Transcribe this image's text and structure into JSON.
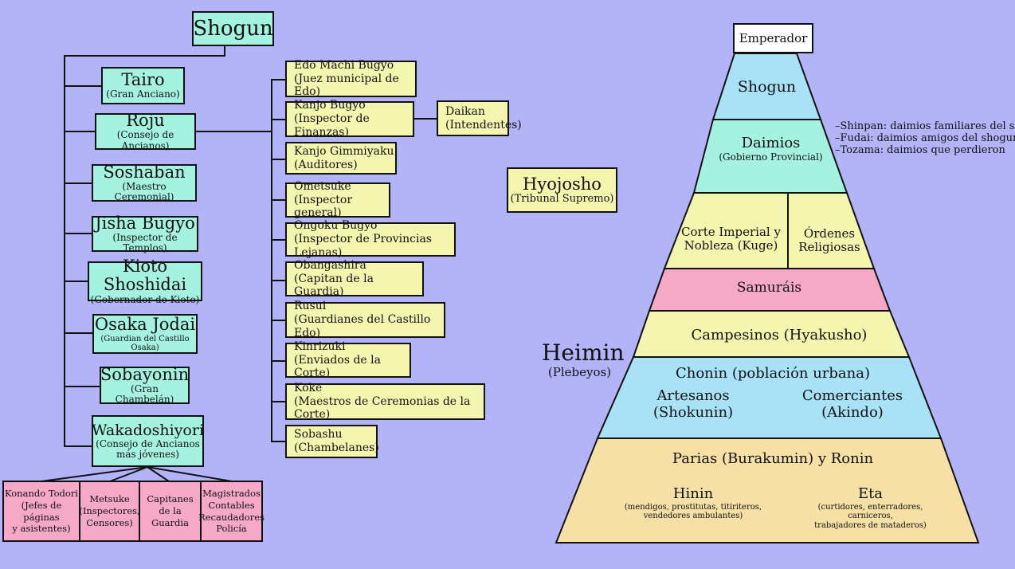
{
  "org": {
    "shogun": "Shogun",
    "left_boxes": [
      {
        "title": "Tairo",
        "sub": "(Gran Anciano)"
      },
      {
        "title": "Roju",
        "sub": "(Consejo de Ancianos)"
      },
      {
        "title": "Soshaban",
        "sub": "(Maestro Ceremonial)"
      },
      {
        "title": "Jisha Bugyo",
        "sub": "(Inspector de Templos)"
      },
      {
        "title": "Kioto Shoshidai",
        "sub": "(Gobernador de Kioto)"
      },
      {
        "title": "Osaka Jodai",
        "sub": "(Guardian del Castillo Osaka)"
      },
      {
        "title": "Sobayonin",
        "sub": "(Gran Chambelán)"
      },
      {
        "title": "Wakadoshiyori",
        "sub": "(Consejo de Ancianos",
        "sub2": "más jóvenes)"
      }
    ],
    "roju_boxes": [
      {
        "line1": "Edo Machi Bugyo",
        "line2": "(Juez municipal de Edo)"
      },
      {
        "line1": "Kanjo Bugyo",
        "line2": "(Inspector de Finanzas)"
      },
      {
        "line1": "Kanjo Gimmiyaku",
        "line2": "(Auditores)"
      },
      {
        "line1": "Ometsuke",
        "line2": "(Inspector general)"
      },
      {
        "line1": "Ongoku Bugyo",
        "line2": "(Inspector de Provincias Lejanas)"
      },
      {
        "line1": "Obangashira",
        "line2": "(Capitan de la Guardia)"
      },
      {
        "line1": "Rusui",
        "line2": "(Guardianes del Castillo Edo)"
      },
      {
        "line1": "Kinrizuki",
        "line2": "(Enviados de la Corte)"
      },
      {
        "line1": "Koke",
        "line2": "(Maestros de Ceremonias de la Corte)"
      },
      {
        "line1": "Sobashu",
        "line2": "(Chambelanes)"
      }
    ],
    "daikan": {
      "line1": "Daikan",
      "line2": "(Intendentes)"
    },
    "hyojosho": {
      "title": "Hyojosho",
      "sub": "(Tribunal Supremo)"
    },
    "waka_subs": [
      {
        "lines": [
          "Konando Todori",
          "(Jefes de páginas",
          "y asistentes)"
        ]
      },
      {
        "lines": [
          "Metsuke",
          "(Inspectores,",
          "Censores)"
        ]
      },
      {
        "lines": [
          "Capitanes",
          "de la Guardia"
        ]
      },
      {
        "lines": [
          "Magistrados",
          "Contables",
          "Recaudadores",
          "Policía"
        ]
      }
    ]
  },
  "pyramid": {
    "emperador": "Emperador",
    "shogun": "Shogun",
    "daimios": "Daimios",
    "daimios_sub": "(Gobierno Provincial)",
    "daimios_notes": [
      "–Shinpan: daimios familiares del shogun",
      "–Fudai: daimios amigos del shogun",
      "–Tozama: daimios que perdieron"
    ],
    "corte": [
      "Corte Imperial y",
      "Nobleza (Kuge)"
    ],
    "ordenes": [
      "Órdenes",
      "Religiosas"
    ],
    "samurais": "Samuráis",
    "campesinos": "Campesinos (Hyakusho)",
    "chonin": "Chonin (población urbana)",
    "artesanos": [
      "Artesanos",
      "(Shokunin)"
    ],
    "comerciantes": [
      "Comerciantes",
      "(Akindo)"
    ],
    "parias": "Parias (Burakumin) y Ronin",
    "hinin": "Hinin",
    "hinin_sub": [
      "(mendigos, prostitutas, titiriteros,",
      "vendedores ambulantes)"
    ],
    "eta": "Eta",
    "eta_sub": [
      "(curtidores, enterradores, carniceros,",
      "trabajadores de mataderos)"
    ],
    "heimin": "Heimin",
    "heimin_sub": "(Plebeyos)"
  },
  "colors": {
    "background": "#b3b3f7",
    "teal": "#a6f2e0",
    "yellow": "#f4f6b0",
    "pink": "#f6a9c6",
    "blue": "#a9e2f7",
    "peach": "#f7e0a6"
  }
}
